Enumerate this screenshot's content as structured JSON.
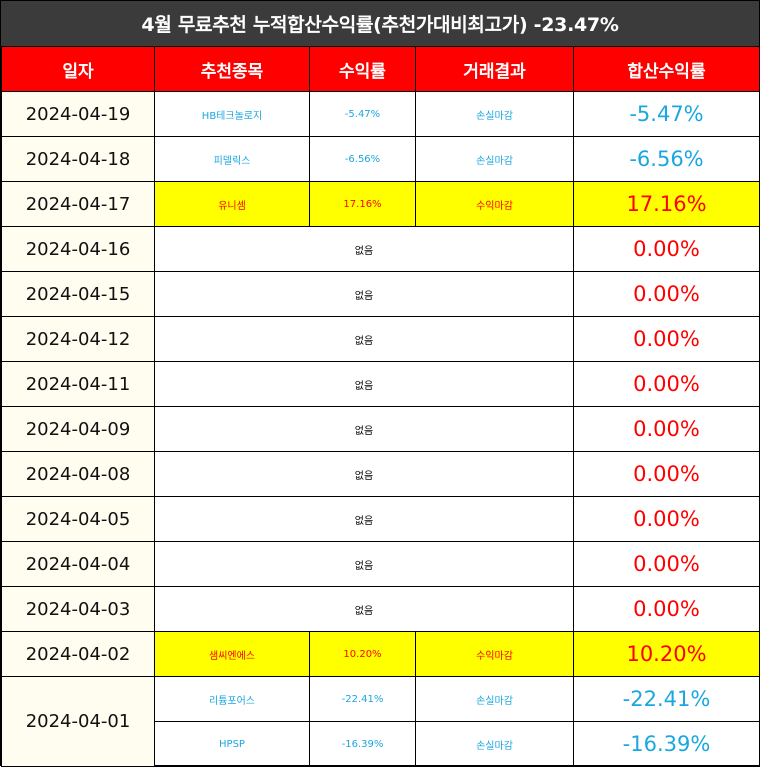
{
  "title": "4월 무료추천 누적합산수익률(추천가대비최고가) -23.47%",
  "headers": [
    "일자",
    "추천종목",
    "수익률",
    "거래결과",
    "합산수익률"
  ],
  "rows": [
    {
      "date": "2024-04-19",
      "stock": "HB테크놀로지",
      "rate": "-5.47%",
      "result": "손실마감",
      "total": "-5.47%"
    },
    {
      "date": "2024-04-18",
      "stock": "피델릭스",
      "rate": "-6.56%",
      "result": "손실마감",
      "total": "-6.56%"
    },
    {
      "date": "2024-04-17",
      "stock": "유니셈",
      "rate": "17.16%",
      "result": "수익마감",
      "total": "17.16%"
    },
    {
      "date": "2024-04-16",
      "none": "없음",
      "total": "0.00%"
    },
    {
      "date": "2024-04-15",
      "none": "없음",
      "total": "0.00%"
    },
    {
      "date": "2024-04-12",
      "none": "없음",
      "total": "0.00%"
    },
    {
      "date": "2024-04-11",
      "none": "없음",
      "total": "0.00%"
    },
    {
      "date": "2024-04-09",
      "none": "없음",
      "total": "0.00%"
    },
    {
      "date": "2024-04-08",
      "none": "없음",
      "total": "0.00%"
    },
    {
      "date": "2024-04-05",
      "none": "없음",
      "total": "0.00%"
    },
    {
      "date": "2024-04-04",
      "none": "없음",
      "total": "0.00%"
    },
    {
      "date": "2024-04-03",
      "none": "없음",
      "total": "0.00%"
    },
    {
      "date": "2024-04-02",
      "stock": "샘씨엔에스",
      "rate": "10.20%",
      "result": "수익마감",
      "total": "10.20%"
    },
    {
      "date": "2024-04-01",
      "stock": "리튬포어스",
      "rate": "-22.41%",
      "result": "손실마감",
      "total": "-22.41%"
    },
    {
      "stock": "HPSP",
      "rate": "-16.39%",
      "result": "손실마감",
      "total": "-16.39%"
    }
  ],
  "colors": {
    "header_bg": "#ff0000",
    "title_bg": "#3b3b3b",
    "loss": "#1aa7e0",
    "gain": "#ff0000",
    "highlight": "#ffff00",
    "date_bg": "#fffdf0"
  }
}
